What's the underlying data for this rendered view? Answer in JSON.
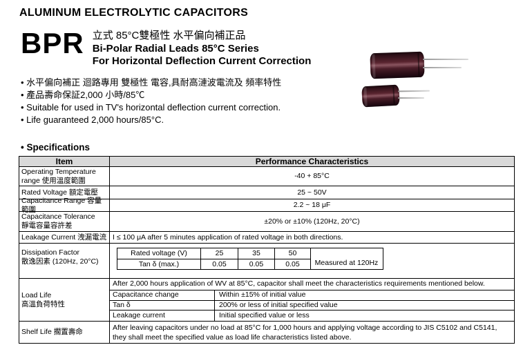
{
  "header": {
    "title": "ALUMINUM ELECTROLYTIC CAPACITORS",
    "series_code": "BPR",
    "subtitle_zh": "立式 85°C雙極性  水平偏向補正品",
    "subtitle_en1": "Bi-Polar Radial Leads 85°C  Series",
    "subtitle_en2": "For Horizontal Deflection Current Correction"
  },
  "features": [
    "水平偏向補正 迴路專用 雙極性 電容,具耐高漣波電流及 頻率特性",
    "產品壽命保証2,000 小時/85℃",
    "Suitable for used in TV's horizontal deflection current correction.",
    "Life guaranteed 2,000 hours/85°C."
  ],
  "specifications_heading": "Specifications",
  "spec_table": {
    "header": {
      "item": "Item",
      "performance": "Performance Characteristics"
    },
    "operating_temperature": {
      "label_line1": "Operating Temperature",
      "label_line2": "range  使用溫度範圍",
      "value": "-40 + 85°C"
    },
    "rated_voltage": {
      "label": "Rated Voltage 額定電壓",
      "value": "25 ~ 50V"
    },
    "capacitance_range": {
      "label": "Capacitance Range 容量範圍",
      "value": "2.2 ~ 18 μF"
    },
    "capacitance_tolerance": {
      "label_line1": "Capacitance Tolerance",
      "label_line2": "靜電容量容許差",
      "value": "±20% or ±10% (120Hz, 20°C)"
    },
    "leakage_current": {
      "label": "Leakage Current 洩漏電流",
      "value": "I ≤ 100 μA after 5 minutes application of rated voltage in both directions."
    },
    "dissipation_factor": {
      "label_line1": "Dissipation Factor",
      "label_line2": "散逸因素  (120Hz, 20°C)",
      "table": {
        "row1_header": "Rated voltage (V)",
        "voltages": [
          "25",
          "35",
          "50"
        ],
        "row2_header": "Tan δ (max.)",
        "tan_values": [
          "0.05",
          "0.05",
          "0.05"
        ],
        "note": "Measured at 120Hz"
      }
    },
    "load_life": {
      "label_line1": "Load Life",
      "label_line2": "高溫負荷特性",
      "intro": "After 2,000 hours application of WV at 85°C, capacitor shall meet the characteristics requirements mentioned below.",
      "criteria": [
        {
          "name": "Capacitance change",
          "value": "Within ±15% of initial value"
        },
        {
          "name": "Tan δ",
          "value": "200% or less of initial specified value"
        },
        {
          "name": "Leakage current",
          "value": "Initial specified value or less"
        }
      ]
    },
    "shelf_life": {
      "label": "Shelf Life 擱置壽命",
      "value_line1": "After leaving capacitors under no load at 85°C for 1,000 hours and applying voltage according to JIS C5102 and C5141,",
      "value_line2": "they shall meet the specified value as load life characteristics listed above."
    }
  },
  "colors": {
    "table_header_bg": "#d9d9d9",
    "border": "#000000",
    "capacitor_body": "#3a161f",
    "capacitor_lead": "#c4c4c4"
  }
}
